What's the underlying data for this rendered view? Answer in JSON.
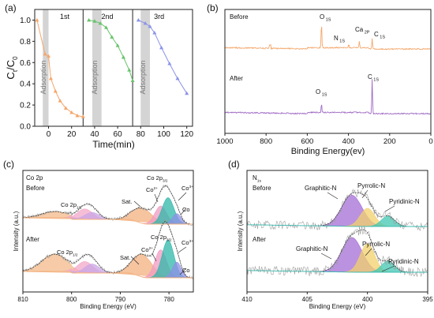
{
  "chart_data": [
    {
      "panel": "(a)",
      "type": "line",
      "xlabel": "Time(min)",
      "ylabel": "Ct/C0",
      "xlim": [
        -12,
        125
      ],
      "ylim": [
        0,
        1.1
      ],
      "xticks": [
        0,
        20,
        40,
        60,
        80,
        100,
        120
      ],
      "yticks": [
        0.0,
        0.2,
        0.4,
        0.6,
        0.8,
        1.0
      ],
      "shaded_regions": [
        {
          "label": "Adsorption",
          "x": [
            -5,
            0
          ]
        },
        {
          "label": "Adsorption",
          "x": [
            38,
            46
          ]
        },
        {
          "label": "Adsorption",
          "x": [
            80,
            88
          ]
        }
      ],
      "cycle_dividers": [
        30,
        73
      ],
      "cycle_labels": [
        "1st",
        "2nd",
        "3rd"
      ],
      "series": [
        {
          "color": "#f5a66a",
          "x": [
            -10,
            -3,
            0,
            2,
            6,
            10,
            15,
            20,
            25,
            30
          ],
          "y": [
            1.0,
            0.68,
            0.66,
            0.45,
            0.33,
            0.24,
            0.17,
            0.13,
            0.1,
            0.09
          ]
        },
        {
          "color": "#69c36c",
          "x": [
            35,
            40,
            45,
            50,
            55,
            60,
            65,
            70,
            73
          ],
          "y": [
            1.0,
            0.99,
            0.97,
            0.93,
            0.84,
            0.76,
            0.65,
            0.53,
            0.43
          ]
        },
        {
          "color": "#8b93e8",
          "x": [
            78,
            84,
            88,
            92,
            98,
            105,
            112,
            120
          ],
          "y": [
            1.0,
            0.97,
            0.94,
            0.88,
            0.74,
            0.59,
            0.45,
            0.31
          ]
        }
      ]
    },
    {
      "panel": "(b)",
      "type": "line",
      "xlabel": "Binding Energy(ev)",
      "xlim": [
        1000,
        0
      ],
      "xticks": [
        1000,
        800,
        600,
        400,
        200,
        0
      ],
      "series": [
        {
          "name": "Before",
          "color": "#f5a66a",
          "labels": [
            {
              "text": "O 1S",
              "x": 531
            },
            {
              "text": "N 1S",
              "x": 399
            },
            {
              "text": "Ca 2P",
              "x": 347
            },
            {
              "text": "C 1S",
              "x": 285
            }
          ]
        },
        {
          "name": "After",
          "color": "#a06bc4",
          "labels": [
            {
              "text": "O 1S",
              "x": 531
            },
            {
              "text": "C 1S",
              "x": 285
            }
          ]
        }
      ]
    },
    {
      "panel": "(c)",
      "type": "line",
      "title": "Co 2p",
      "xlabel": "Binding Energy (eV)",
      "ylabel": "Intensity (a.u.)",
      "xlim": [
        810,
        775
      ],
      "xticks": [
        810,
        800,
        790,
        780
      ],
      "series": [
        {
          "name": "Before",
          "labels": [
            {
              "text": "Co 2p1/2",
              "x": 797,
              "name": "Co 2p",
              "sub": "1/2"
            },
            {
              "text": "Sat.",
              "x": 786.5
            },
            {
              "text": "Co 2+",
              "x": 783.5,
              "name": "Co",
              "sup": "2+"
            },
            {
              "text": "Co 2p3/2",
              "x": 780.5,
              "name": "Co 2p",
              "sub": "3/2"
            },
            {
              "text": "Co 3+",
              "x": 779.5,
              "name": "Co",
              "sup": "3+"
            },
            {
              "text": "Co",
              "x": 778.3
            }
          ]
        },
        {
          "name": "After",
          "labels": [
            {
              "text": "Co 2p1/2",
              "x": 797,
              "name": "Co 2p",
              "sub": "1/2"
            },
            {
              "text": "Sat.",
              "x": 786.5
            },
            {
              "text": "Co 2+",
              "x": 783.5,
              "name": "Co",
              "sup": "2+"
            },
            {
              "text": "Co 2p3/2",
              "x": 780.5,
              "name": "Co 2p",
              "sub": "3/2"
            },
            {
              "text": "Co 3+",
              "x": 779.5,
              "name": "Co",
              "sup": "3+"
            },
            {
              "text": "Co",
              "x": 778.3
            }
          ]
        }
      ],
      "components": [
        {
          "center": 803.5,
          "width": 2.6,
          "color": "#f4b98a"
        },
        {
          "center": 797.3,
          "width": 1.6,
          "color": "#f3a8c8"
        },
        {
          "center": 795.8,
          "width": 1.5,
          "color": "#c9a6e6"
        },
        {
          "center": 785.5,
          "width": 2.0,
          "color": "#f3b07e"
        },
        {
          "center": 781.7,
          "width": 1.2,
          "color": "#f09ac2"
        },
        {
          "center": 780.2,
          "width": 1.2,
          "color": "#2fb7a8"
        },
        {
          "center": 778.4,
          "width": 0.9,
          "color": "#8e8fe6"
        }
      ],
      "component_heights": {
        "Before": [
          0.18,
          0.3,
          0.2,
          0.44,
          0.52,
          0.76,
          0.3
        ],
        "After": [
          0.42,
          0.28,
          0.22,
          0.55,
          0.68,
          0.92,
          0.38
        ]
      }
    },
    {
      "panel": "(d)",
      "type": "line",
      "title": "N 1s",
      "title_name": "N",
      "title_sub": "1s",
      "xlabel": "Binding Energy (eV)",
      "ylabel": "Intensity (a.u.)",
      "xlim": [
        410,
        395
      ],
      "xticks": [
        410,
        405,
        400,
        395
      ],
      "series": [
        {
          "name": "Before",
          "labels": [
            {
              "text": "Graphitic-N",
              "x": 401.3
            },
            {
              "text": "Pyrrolic-N",
              "x": 400
            },
            {
              "text": "Pyridinic-N",
              "x": 398.3
            }
          ]
        },
        {
          "name": "After",
          "labels": [
            {
              "text": "Graphitic-N",
              "x": 401.3
            },
            {
              "text": "Pyrrolic-N",
              "x": 400
            },
            {
              "text": "Pyridinic-N",
              "x": 398.3
            }
          ]
        }
      ],
      "components": [
        {
          "center": 401.3,
          "width": 0.85,
          "color": "#a46dd6"
        },
        {
          "center": 400.0,
          "width": 0.6,
          "color": "#f2d06b"
        },
        {
          "center": 398.3,
          "width": 0.55,
          "color": "#42c7b3"
        }
      ],
      "component_heights": {
        "Before": [
          0.9,
          0.52,
          0.3
        ],
        "After": [
          1.0,
          0.82,
          0.32
        ]
      }
    }
  ]
}
